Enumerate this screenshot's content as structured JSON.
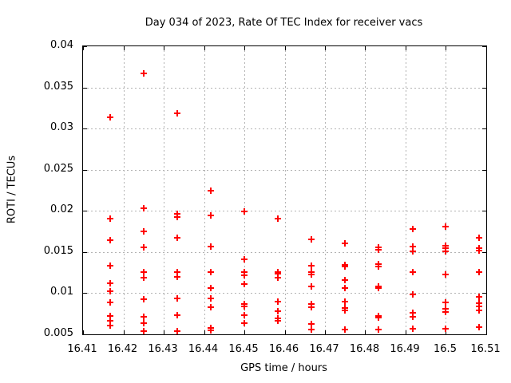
{
  "page": {
    "background_color": "#ffffff",
    "frame_color": "#000000",
    "grid_color": "#b3b3b3"
  },
  "chart_data": {
    "type": "scatter",
    "title": "Day 034 of 2023, Rate Of TEC Index for receiver vacs",
    "xlabel": "GPS time / hours",
    "ylabel": "ROTI / TECUs",
    "xlim": [
      16.41,
      16.51
    ],
    "ylim": [
      0.005,
      0.04
    ],
    "grid": true,
    "legend": "none",
    "marker": "plus",
    "marker_color": "#ff0000",
    "x_ticks": [
      16.41,
      16.42,
      16.43,
      16.44,
      16.45,
      16.46,
      16.47,
      16.48,
      16.49,
      16.5,
      16.51
    ],
    "x_tick_labels": [
      "16.41",
      "16.42",
      "16.43",
      "16.44",
      "16.45",
      "16.46",
      "16.47",
      "16.48",
      "16.49",
      "16.5",
      "16.51"
    ],
    "y_ticks": [
      0.005,
      0.01,
      0.015,
      0.02,
      0.025,
      0.03,
      0.035,
      0.04
    ],
    "y_tick_labels": [
      "0.005",
      "0.01",
      "0.015",
      "0.02",
      "0.025",
      "0.03",
      "0.035",
      "0.04"
    ],
    "columns": [
      {
        "x": 16.4167,
        "y": [
          0.0314,
          0.0191,
          0.0164,
          0.0133,
          0.0112,
          0.0102,
          0.0089,
          0.0072,
          0.0066,
          0.0061
        ]
      },
      {
        "x": 16.425,
        "y": [
          0.0367,
          0.0203,
          0.0175,
          0.0156,
          0.0126,
          0.0119,
          0.0093,
          0.0071,
          0.0064,
          0.0054
        ]
      },
      {
        "x": 16.4333,
        "y": [
          0.0319,
          0.0196,
          0.0193,
          0.0167,
          0.0126,
          0.012,
          0.0094,
          0.0073,
          0.0054
        ]
      },
      {
        "x": 16.4417,
        "y": [
          0.0225,
          0.0194,
          0.0157,
          0.0126,
          0.0106,
          0.0094,
          0.0083,
          0.0058,
          0.0055
        ]
      },
      {
        "x": 16.45,
        "y": [
          0.0199,
          0.0141,
          0.0126,
          0.0122,
          0.0111,
          0.0087,
          0.0084,
          0.0073,
          0.0064
        ]
      },
      {
        "x": 16.4583,
        "y": [
          0.0191,
          0.0126,
          0.0124,
          0.0119,
          0.009,
          0.0078,
          0.0069,
          0.0066
        ]
      },
      {
        "x": 16.4667,
        "y": [
          0.0165,
          0.0133,
          0.0126,
          0.0123,
          0.0108,
          0.0087,
          0.0083,
          0.0063,
          0.0056
        ]
      },
      {
        "x": 16.475,
        "y": [
          0.0161,
          0.0134,
          0.0132,
          0.0116,
          0.0106,
          0.009,
          0.0082,
          0.0079,
          0.0056
        ]
      },
      {
        "x": 16.4833,
        "y": [
          0.0156,
          0.0153,
          0.0135,
          0.0132,
          0.0108,
          0.0106,
          0.0072,
          0.007,
          0.0056
        ]
      },
      {
        "x": 16.4917,
        "y": [
          0.0178,
          0.0157,
          0.0151,
          0.0126,
          0.0098,
          0.0076,
          0.0071,
          0.0057
        ]
      },
      {
        "x": 16.5,
        "y": [
          0.0181,
          0.0158,
          0.0155,
          0.0151,
          0.0123,
          0.0089,
          0.0081,
          0.0077,
          0.0057
        ]
      },
      {
        "x": 16.5083,
        "y": [
          0.0167,
          0.0155,
          0.0152,
          0.0126,
          0.0096,
          0.0088,
          0.0084,
          0.0079,
          0.0059
        ]
      }
    ]
  }
}
